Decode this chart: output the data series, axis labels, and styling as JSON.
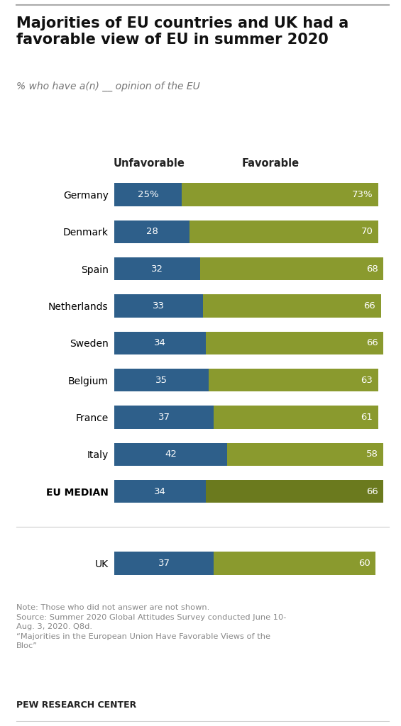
{
  "title": "Majorities of EU countries and UK had a\nfavorable view of EU in summer 2020",
  "subtitle": "% who have a(n) __ opinion of the EU",
  "countries": [
    "Germany",
    "Denmark",
    "Spain",
    "Netherlands",
    "Sweden",
    "Belgium",
    "France",
    "Italy",
    "EU MEDIAN"
  ],
  "unfavorable": [
    25,
    28,
    32,
    33,
    34,
    35,
    37,
    42,
    34
  ],
  "favorable": [
    73,
    70,
    68,
    66,
    66,
    63,
    61,
    58,
    66
  ],
  "uk_unfavorable": 37,
  "uk_favorable": 60,
  "unfavorable_color": "#2E5F8A",
  "favorable_color_eu": "#8A9A2E",
  "favorable_color_median": "#6B7A1E",
  "favorable_color_uk": "#8A9A2E",
  "col_header_unfav": "Unfavorable",
  "col_header_fav": "Favorable",
  "note_text": "Note: Those who did not answer are not shown.\nSource: Summer 2020 Global Attitudes Survey conducted June 10-\nAug. 3, 2020. Q8d.\n“Majorities in the European Union Have Favorable Views of the\nBloc”",
  "source_label": "PEW RESEARCH CENTER",
  "background_color": "#ffffff",
  "bar_height": 0.62,
  "text_color_dark": "#222222",
  "text_color_note": "#888888"
}
